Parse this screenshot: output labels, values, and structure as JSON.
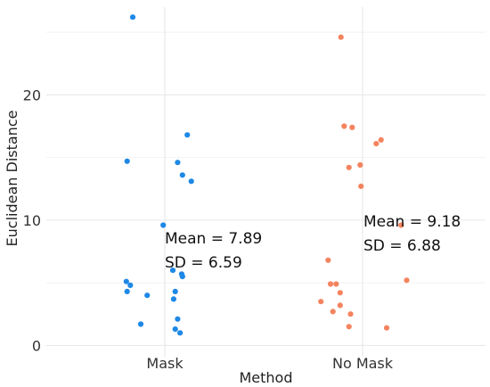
{
  "chart_data": {
    "type": "scatter",
    "title": "",
    "xlabel": "Method",
    "ylabel": "Euclidean Distance",
    "categories": [
      "Mask",
      "No Mask"
    ],
    "ylim": [
      -0.9,
      27
    ],
    "yticks": [
      0,
      10,
      20
    ],
    "grid": true,
    "series": [
      {
        "category": "Mask",
        "color": "#1e88e5",
        "points": [
          {
            "x": -0.4,
            "y": 26.2
          },
          {
            "x": -0.47,
            "y": 14.7
          },
          {
            "x": 0.28,
            "y": 16.8
          },
          {
            "x": 0.16,
            "y": 14.6
          },
          {
            "x": 0.22,
            "y": 13.6
          },
          {
            "x": 0.33,
            "y": 13.1
          },
          {
            "x": -0.02,
            "y": 9.6
          },
          {
            "x": 0.1,
            "y": 6.0
          },
          {
            "x": 0.21,
            "y": 5.7
          },
          {
            "x": 0.22,
            "y": 5.5
          },
          {
            "x": -0.48,
            "y": 5.1
          },
          {
            "x": -0.43,
            "y": 4.8
          },
          {
            "x": -0.47,
            "y": 4.3
          },
          {
            "x": 0.13,
            "y": 4.3
          },
          {
            "x": -0.22,
            "y": 4.0
          },
          {
            "x": 0.11,
            "y": 3.7
          },
          {
            "x": -0.3,
            "y": 1.7
          },
          {
            "x": 0.16,
            "y": 2.1
          },
          {
            "x": 0.13,
            "y": 1.3
          },
          {
            "x": 0.19,
            "y": 1.0
          }
        ],
        "annotation": {
          "mean_label": "Mean =  7.89",
          "sd_label": "SD =  6.59"
        }
      },
      {
        "category": "No Mask",
        "color": "#f4845f",
        "points": [
          {
            "x": -0.27,
            "y": 24.6
          },
          {
            "x": -0.23,
            "y": 17.5
          },
          {
            "x": -0.13,
            "y": 17.4
          },
          {
            "x": 0.17,
            "y": 16.1
          },
          {
            "x": 0.23,
            "y": 16.4
          },
          {
            "x": -0.17,
            "y": 14.2
          },
          {
            "x": -0.03,
            "y": 14.4
          },
          {
            "x": -0.02,
            "y": 12.7
          },
          {
            "x": 0.48,
            "y": 9.6
          },
          {
            "x": -0.43,
            "y": 6.8
          },
          {
            "x": 0.55,
            "y": 5.2
          },
          {
            "x": -0.4,
            "y": 4.9
          },
          {
            "x": -0.33,
            "y": 4.9
          },
          {
            "x": -0.28,
            "y": 4.2
          },
          {
            "x": -0.52,
            "y": 3.5
          },
          {
            "x": -0.28,
            "y": 3.2
          },
          {
            "x": -0.37,
            "y": 2.7
          },
          {
            "x": -0.15,
            "y": 2.5
          },
          {
            "x": -0.17,
            "y": 1.5
          },
          {
            "x": 0.3,
            "y": 1.4
          }
        ],
        "annotation": {
          "mean_label": "Mean =  9.18",
          "sd_label": "SD =  6.88"
        }
      }
    ]
  }
}
